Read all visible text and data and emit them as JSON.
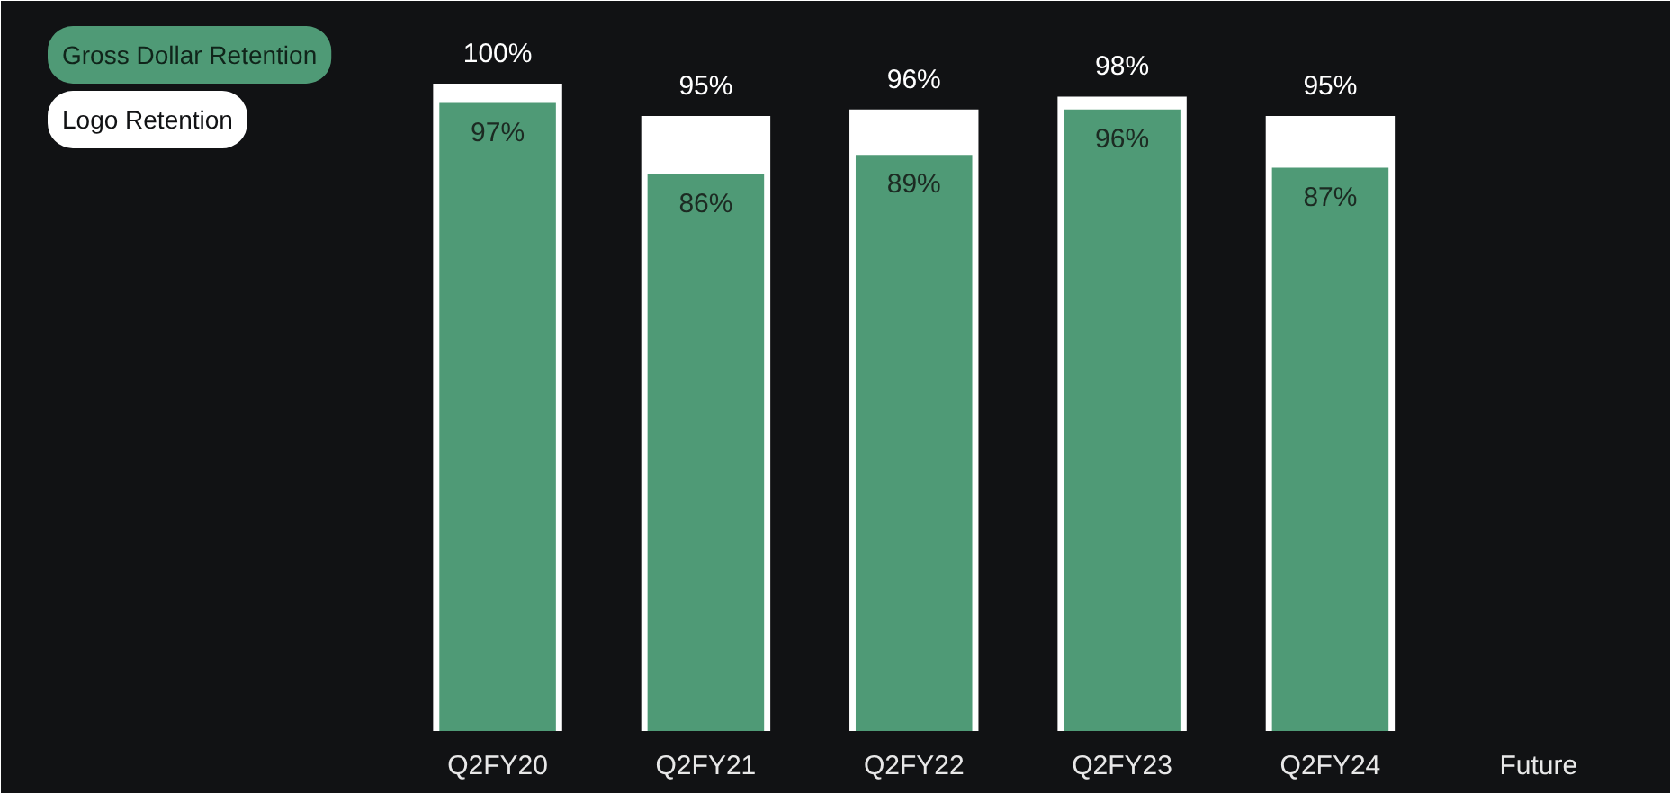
{
  "chart_data": {
    "type": "bar",
    "categories": [
      "Q2FY20",
      "Q2FY21",
      "Q2FY22",
      "Q2FY23",
      "Q2FY24",
      "Future"
    ],
    "series": [
      {
        "name": "Logo Retention",
        "color": "#ffffff",
        "values": [
          100,
          95,
          96,
          98,
          95,
          null
        ],
        "value_labels": [
          "100%",
          "95%",
          "96%",
          "98%",
          "95%",
          null
        ]
      },
      {
        "name": "Gross Dollar Retention",
        "color": "#4f9a76",
        "values": [
          97,
          86,
          89,
          96,
          87,
          null
        ],
        "value_labels": [
          "97%",
          "86%",
          "89%",
          "96%",
          "87%",
          null
        ]
      }
    ],
    "legend": "top left",
    "grid": false
  }
}
